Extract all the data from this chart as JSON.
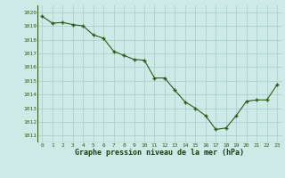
{
  "x": [
    0,
    1,
    2,
    3,
    4,
    5,
    6,
    7,
    8,
    9,
    10,
    11,
    12,
    13,
    14,
    15,
    16,
    17,
    18,
    19,
    20,
    21,
    22,
    23
  ],
  "y": [
    1019.7,
    1019.2,
    1019.25,
    1019.1,
    1019.0,
    1018.35,
    1018.1,
    1017.15,
    1016.85,
    1016.55,
    1016.5,
    1015.2,
    1015.2,
    1014.3,
    1013.45,
    1013.0,
    1012.45,
    1011.45,
    1011.55,
    1012.45,
    1013.5,
    1013.6,
    1013.6,
    1014.7
  ],
  "line_color": "#2d5a1b",
  "marker_color": "#2d5a1b",
  "bg_color": "#ceeae6",
  "grid_color": "#a8cdc9",
  "xlabel": "Graphe pression niveau de la mer (hPa)",
  "xlabel_color": "#1a4010",
  "tick_color": "#2d5a1b",
  "ylim": [
    1010.5,
    1020.5
  ],
  "xlim": [
    -0.5,
    23.5
  ],
  "yticks": [
    1011,
    1012,
    1013,
    1014,
    1015,
    1016,
    1017,
    1018,
    1019,
    1020
  ],
  "xticks": [
    0,
    1,
    2,
    3,
    4,
    5,
    6,
    7,
    8,
    9,
    10,
    11,
    12,
    13,
    14,
    15,
    16,
    17,
    18,
    19,
    20,
    21,
    22,
    23
  ]
}
